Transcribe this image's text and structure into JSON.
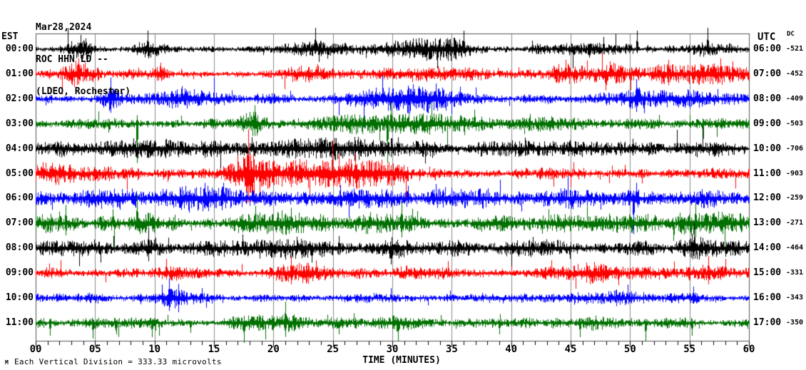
{
  "header": {
    "date": "Mar28,2024",
    "station": "ROC HHN LD --",
    "location": "(LDEO, Rochester)"
  },
  "axes": {
    "left_label": "EST",
    "right_label": "UTC",
    "dc_label": "DC",
    "x_title": "TIME (MINUTES)",
    "x_tick_labels": [
      "00",
      "05",
      "10",
      "15",
      "20",
      "25",
      "30",
      "35",
      "40",
      "45",
      "50",
      "55",
      "60"
    ]
  },
  "footer": {
    "glyph": "M",
    "scale_text": "Each Vertical Division =  333.33 microvolts"
  },
  "colors": {
    "black": "#000000",
    "red": "#ff0000",
    "blue": "#0000ff",
    "green": "#007000",
    "grid": "#8a8a8a",
    "frame": "#555555",
    "tick": "#000000",
    "background": "#ffffff"
  },
  "chart_data": {
    "type": "line",
    "subtype": "helicorder-seismogram",
    "title": "ROC HHN LD -- (LDEO, Rochester) Mar28,2024",
    "x_label": "TIME (MINUTES)",
    "x_range": [
      0,
      60
    ],
    "x_major_tick": 5,
    "x_minor_tick": 1,
    "grid": "vertical-gridlines-every-5-minutes",
    "vertical_division_microvolts": 333.33,
    "rows": [
      {
        "est": "00:00",
        "utc": "06:00",
        "dc": "-521",
        "color": "#000000",
        "base": 4.5,
        "seed": 101,
        "bursts": [
          [
            3.8,
            0.8,
            9
          ],
          [
            9.4,
            0.9,
            8
          ],
          [
            22.5,
            1.8,
            6
          ],
          [
            31,
            2.5,
            5
          ],
          [
            34.5,
            2,
            7
          ],
          [
            47,
            2,
            6
          ],
          [
            56,
            1.5,
            5
          ]
        ],
        "spikes": [
          [
            3.8,
            20,
            "both"
          ],
          [
            9.4,
            26,
            "up"
          ],
          [
            23.5,
            30,
            "up"
          ],
          [
            36,
            26,
            "up"
          ],
          [
            50.6,
            26,
            "up"
          ],
          [
            56.5,
            30,
            "up"
          ],
          [
            23.8,
            18,
            "down"
          ]
        ]
      },
      {
        "est": "01:00",
        "utc": "07:00",
        "dc": "-452",
        "color": "#ff0000",
        "base": 5,
        "seed": 202,
        "bursts": [
          [
            3.6,
            0.9,
            10
          ],
          [
            10.5,
            0.5,
            6
          ],
          [
            23,
            1.5,
            6
          ],
          [
            33,
            2.5,
            5
          ],
          [
            44.6,
            0.8,
            7
          ],
          [
            48.5,
            1.8,
            9
          ],
          [
            53,
            1,
            7
          ],
          [
            57,
            2.5,
            9
          ]
        ],
        "spikes": [
          [
            3.6,
            22,
            "both"
          ],
          [
            10.5,
            16,
            "up"
          ],
          [
            23.7,
            14,
            "up"
          ],
          [
            44.6,
            20,
            "up"
          ],
          [
            48.3,
            18,
            "up"
          ],
          [
            53.2,
            20,
            "up"
          ],
          [
            57.6,
            22,
            "up"
          ],
          [
            58.6,
            18,
            "up"
          ]
        ]
      },
      {
        "est": "02:00",
        "utc": "08:00",
        "dc": "-409",
        "color": "#0000ff",
        "base": 5,
        "seed": 303,
        "bursts": [
          [
            6.2,
            0.7,
            8
          ],
          [
            12.5,
            1.5,
            7
          ],
          [
            29,
            2.5,
            9
          ],
          [
            33,
            2.5,
            9
          ],
          [
            50.8,
            1.5,
            8
          ],
          [
            55,
            1.5,
            6
          ]
        ],
        "spikes": [
          [
            6.3,
            30,
            "both"
          ],
          [
            12.3,
            18,
            "up"
          ],
          [
            28.6,
            16,
            "both"
          ],
          [
            31.5,
            14,
            "up"
          ],
          [
            50.5,
            28,
            "both"
          ],
          [
            51.2,
            20,
            "down"
          ]
        ]
      },
      {
        "est": "03:00",
        "utc": "09:00",
        "dc": "-503",
        "color": "#007000",
        "base": 5,
        "seed": 404,
        "bursts": [
          [
            18.3,
            0.8,
            9
          ],
          [
            27.5,
            2.5,
            6
          ],
          [
            33,
            3,
            6
          ],
          [
            44,
            2,
            4
          ]
        ],
        "spikes": [
          [
            8.5,
            55,
            "down"
          ],
          [
            18.4,
            26,
            "both"
          ],
          [
            29.6,
            55,
            "down"
          ],
          [
            29.9,
            30,
            "up"
          ],
          [
            36.9,
            20,
            "up"
          ]
        ]
      },
      {
        "est": "04:00",
        "utc": "10:00",
        "dc": "-706",
        "color": "#000000",
        "base": 7.5,
        "seed": 505,
        "bursts": [
          [
            10.5,
            2,
            4
          ],
          [
            25,
            3,
            4
          ],
          [
            30,
            2,
            4
          ],
          [
            50,
            1.5,
            4
          ]
        ],
        "spikes": [
          [
            18.2,
            16,
            "up"
          ],
          [
            30.5,
            16,
            "both"
          ],
          [
            50.2,
            14,
            "up"
          ]
        ]
      },
      {
        "est": "05:00",
        "utc": "11:00",
        "dc": "-903",
        "color": "#ff0000",
        "base": 7.5,
        "seed": 606,
        "bursts": [
          [
            1,
            1.5,
            4
          ],
          [
            18,
            1,
            18
          ],
          [
            21,
            2.5,
            8
          ],
          [
            26,
            3,
            7
          ],
          [
            29,
            2,
            5
          ]
        ],
        "spikes": [
          [
            17.9,
            62,
            "both"
          ],
          [
            18.15,
            40,
            "down"
          ],
          [
            26.5,
            20,
            "up"
          ],
          [
            0.6,
            16,
            "up"
          ]
        ]
      },
      {
        "est": "06:00",
        "utc": "12:00",
        "dc": "-259",
        "color": "#0000ff",
        "base": 9,
        "seed": 707,
        "bursts": [
          [
            5.5,
            2,
            4
          ],
          [
            14,
            2,
            5
          ],
          [
            19,
            2,
            5
          ],
          [
            27.5,
            2.5,
            4
          ],
          [
            45,
            2,
            4
          ],
          [
            56,
            2,
            4
          ]
        ],
        "spikes": [
          [
            14.2,
            22,
            "both"
          ],
          [
            31.3,
            18,
            "up"
          ],
          [
            50.3,
            50,
            "down"
          ],
          [
            50.5,
            22,
            "up"
          ]
        ]
      },
      {
        "est": "07:00",
        "utc": "13:00",
        "dc": "-271",
        "color": "#007000",
        "base": 8.5,
        "seed": 808,
        "bursts": [
          [
            1.5,
            1.5,
            5
          ],
          [
            8.5,
            0.6,
            6
          ],
          [
            21,
            1.5,
            5
          ],
          [
            30.5,
            2,
            5
          ],
          [
            55.5,
            1.5,
            6
          ]
        ],
        "spikes": [
          [
            2.5,
            26,
            "both"
          ],
          [
            8.5,
            40,
            "up"
          ],
          [
            21.5,
            22,
            "up"
          ],
          [
            30.8,
            30,
            "both"
          ],
          [
            55.5,
            30,
            "both"
          ],
          [
            6.5,
            20,
            "up"
          ]
        ]
      },
      {
        "est": "08:00",
        "utc": "14:00",
        "dc": "-464",
        "color": "#000000",
        "base": 7.5,
        "seed": 909,
        "bursts": [
          [
            9.5,
            1.2,
            6
          ],
          [
            21,
            2,
            4
          ],
          [
            30,
            1.5,
            4
          ],
          [
            42,
            1.5,
            3
          ],
          [
            56,
            1.5,
            4
          ]
        ],
        "spikes": [
          [
            9.5,
            28,
            "both"
          ],
          [
            23.2,
            20,
            "down"
          ],
          [
            41.8,
            16,
            "up"
          ],
          [
            55.2,
            20,
            "up"
          ]
        ]
      },
      {
        "est": "09:00",
        "utc": "15:00",
        "dc": "-331",
        "color": "#ff0000",
        "base": 6,
        "seed": 1010,
        "bursts": [
          [
            11,
            1,
            5
          ],
          [
            21.5,
            1.5,
            6
          ],
          [
            24,
            1.5,
            5
          ],
          [
            33,
            2,
            4
          ],
          [
            46.5,
            1.5,
            5
          ],
          [
            57,
            1.5,
            6
          ]
        ],
        "spikes": [
          [
            11,
            20,
            "up"
          ],
          [
            21.5,
            24,
            "both"
          ],
          [
            23.6,
            18,
            "up"
          ],
          [
            47,
            16,
            "up"
          ],
          [
            56.6,
            24,
            "both"
          ],
          [
            58,
            20,
            "up"
          ]
        ]
      },
      {
        "est": "10:00",
        "utc": "16:00",
        "dc": "-343",
        "color": "#0000ff",
        "base": 5,
        "seed": 1111,
        "bursts": [
          [
            11.5,
            0.8,
            7
          ],
          [
            28,
            2,
            3
          ],
          [
            50,
            2.5,
            4
          ],
          [
            55,
            1,
            4
          ]
        ],
        "spikes": [
          [
            11.2,
            28,
            "both"
          ],
          [
            12,
            20,
            "down"
          ],
          [
            14,
            14,
            "up"
          ],
          [
            55.3,
            16,
            "up"
          ]
        ]
      },
      {
        "est": "11:00",
        "utc": "17:00",
        "dc": "-350",
        "color": "#007000",
        "base": 5,
        "seed": 1212,
        "bursts": [
          [
            5,
            1.5,
            3
          ],
          [
            17.5,
            1.2,
            6
          ],
          [
            21,
            1,
            5
          ],
          [
            30.5,
            1,
            4
          ],
          [
            47,
            1.5,
            4
          ]
        ],
        "spikes": [
          [
            1.2,
            18,
            "down"
          ],
          [
            4.8,
            22,
            "down"
          ],
          [
            6.8,
            16,
            "down"
          ],
          [
            9.8,
            20,
            "down"
          ],
          [
            13,
            14,
            "down"
          ],
          [
            17.5,
            28,
            "down"
          ],
          [
            21,
            30,
            "both"
          ],
          [
            25.5,
            16,
            "down"
          ],
          [
            30.5,
            26,
            "down"
          ],
          [
            39,
            16,
            "down"
          ],
          [
            45.8,
            20,
            "down"
          ],
          [
            51.3,
            26,
            "down"
          ],
          [
            55.2,
            18,
            "down"
          ]
        ]
      }
    ]
  }
}
